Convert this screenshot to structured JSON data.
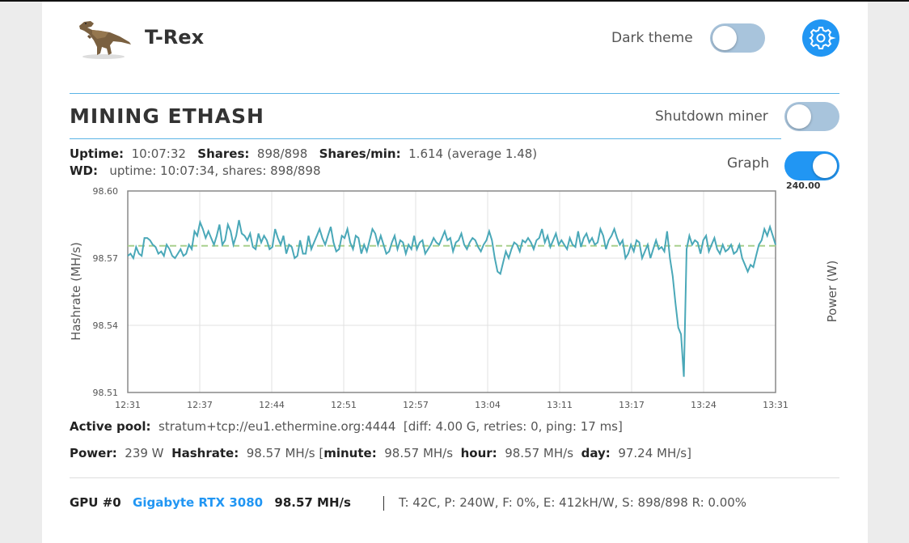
{
  "header": {
    "app_title": "T-Rex",
    "dark_theme_label": "Dark theme",
    "dark_theme_on": false,
    "settings_icon": "gear-icon"
  },
  "mining": {
    "title": "MINING ETHASH",
    "shutdown_label": "Shutdown miner",
    "shutdown_on": false,
    "uptime_label": "Uptime:",
    "uptime_value": "10:07:32",
    "shares_label": "Shares:",
    "shares_value": "898/898",
    "shares_min_label": "Shares/min:",
    "shares_min_value": "1.614 (average 1.48)",
    "wd_label": "WD:",
    "wd_value": "uptime: 10:07:34, shares: 898/898",
    "graph_label": "Graph",
    "graph_on": true
  },
  "chart_data": {
    "type": "line",
    "ylabel": "Hashrate (MH/s)",
    "y2label": "Power (W)",
    "y2_max_label": "240.00",
    "ylim": [
      98.51,
      98.6
    ],
    "y_ticks": [
      "98.60",
      "98.57",
      "98.54",
      "98.51"
    ],
    "x_ticks": [
      "12:31",
      "12:37",
      "12:44",
      "12:51",
      "12:57",
      "13:04",
      "13:11",
      "13:17",
      "13:24",
      "13:31"
    ],
    "average": 98.5755,
    "grid": true,
    "series": [
      {
        "values": [
          98.571,
          98.572,
          98.57,
          98.575,
          98.572,
          98.571,
          98.579,
          98.579,
          98.578,
          98.576,
          98.575,
          98.572,
          98.573,
          98.571,
          98.576,
          98.574,
          98.571,
          98.57,
          98.572,
          98.574,
          98.571,
          98.572,
          98.576,
          98.574,
          98.582,
          98.58,
          98.586,
          98.583,
          98.579,
          98.582,
          98.579,
          98.576,
          98.58,
          98.585,
          98.576,
          98.578,
          98.585,
          98.582,
          98.576,
          98.58,
          98.587,
          98.581,
          98.58,
          98.578,
          98.581,
          98.575,
          98.574,
          98.581,
          98.577,
          98.58,
          98.578,
          98.574,
          98.575,
          98.583,
          98.579,
          98.576,
          98.58,
          98.572,
          98.576,
          98.575,
          98.57,
          98.571,
          98.578,
          98.572,
          98.572,
          98.58,
          98.574,
          98.577,
          98.58,
          98.583,
          98.579,
          98.576,
          98.58,
          98.584,
          98.577,
          98.573,
          98.574,
          98.58,
          98.579,
          98.583,
          98.577,
          98.574,
          98.58,
          98.579,
          98.572,
          98.576,
          98.573,
          98.578,
          98.583,
          98.581,
          98.576,
          98.58,
          98.576,
          98.572,
          98.573,
          98.577,
          98.58,
          98.574,
          98.578,
          98.577,
          98.572,
          98.576,
          98.574,
          98.58,
          98.574,
          98.577,
          98.578,
          98.572,
          98.574,
          98.576,
          98.579,
          98.577,
          98.576,
          98.579,
          98.582,
          98.578,
          98.579,
          98.573,
          98.577,
          98.578,
          98.581,
          98.576,
          98.574,
          98.577,
          98.579,
          98.578,
          98.575,
          98.573,
          98.576,
          98.578,
          98.582,
          98.578,
          98.57,
          98.564,
          98.563,
          98.568,
          98.573,
          98.57,
          98.574,
          98.577,
          98.576,
          98.573,
          98.578,
          98.577,
          98.579,
          98.577,
          98.574,
          98.578,
          98.579,
          98.583,
          98.577,
          98.58,
          98.575,
          98.578,
          98.581,
          98.576,
          98.578,
          98.576,
          98.574,
          98.579,
          98.576,
          98.575,
          98.582,
          98.575,
          98.579,
          98.581,
          98.577,
          98.579,
          98.576,
          98.577,
          98.583,
          98.58,
          98.574,
          98.578,
          98.58,
          98.583,
          98.579,
          98.576,
          98.578,
          98.57,
          98.572,
          98.576,
          98.573,
          98.578,
          98.577,
          98.57,
          98.573,
          98.576,
          98.57,
          98.574,
          98.578,
          98.574,
          98.575,
          98.573,
          98.582,
          98.57,
          98.562,
          98.55,
          98.539,
          98.536,
          98.517,
          98.574,
          98.58,
          98.576,
          98.578,
          98.577,
          98.572,
          98.578,
          98.58,
          98.573,
          98.576,
          98.579,
          98.574,
          98.572,
          98.576,
          98.573,
          98.574,
          98.576,
          98.572,
          98.573,
          98.576,
          98.57,
          98.567,
          98.564,
          98.567,
          98.566,
          98.571,
          98.576,
          98.578,
          98.583,
          98.58,
          98.584,
          98.58,
          98.576
        ]
      }
    ]
  },
  "pool": {
    "label": "Active pool:",
    "value": "stratum+tcp://eu1.ethermine.org:4444",
    "details": "[diff: 4.00 G, retries: 0, ping: 17 ms]"
  },
  "power": {
    "power_label": "Power:",
    "power_value": "239 W",
    "hashrate_label": "Hashrate:",
    "hashrate_value": "98.57 MH/s",
    "bracket_open": "[",
    "minute_label": "minute:",
    "minute_value": "98.57 MH/s",
    "hour_label": "hour:",
    "hour_value": "98.57 MH/s",
    "day_label": "day:",
    "day_value": "97.24 MH/s",
    "bracket_close": "]"
  },
  "gpu": {
    "id_label": "GPU #0",
    "name": "Gigabyte RTX 3080",
    "hashrate": "98.57 MH/s",
    "stats": "T: 42C, P: 240W, F: 0%, E: 412kH/W, S: 898/898 R: 0.00%"
  },
  "colors": {
    "accent": "#2196f3",
    "line": "#4aa8b8",
    "average_line": "#a8d08d"
  }
}
